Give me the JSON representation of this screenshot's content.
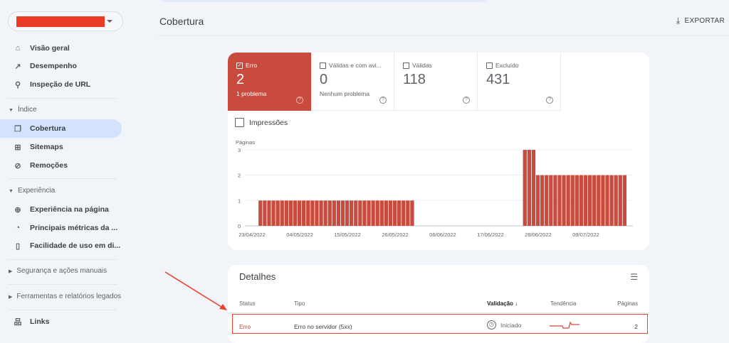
{
  "sidebar": {
    "items_top": [
      {
        "label": "Visão geral",
        "icon": "home-icon"
      },
      {
        "label": "Desempenho",
        "icon": "trending-up-icon"
      },
      {
        "label": "Inspeção de URL",
        "icon": "search-icon"
      }
    ],
    "section_index": "Índice",
    "items_index": [
      {
        "label": "Cobertura",
        "icon": "file-copy-icon"
      },
      {
        "label": "Sitemaps",
        "icon": "sitemap-icon"
      },
      {
        "label": "Remoções",
        "icon": "eye-off-icon"
      }
    ],
    "section_experience": "Experiência",
    "items_experience": [
      {
        "label": "Experiência na página",
        "icon": "plus-circle-icon"
      },
      {
        "label": "Principais métricas da ...",
        "icon": "speedometer-icon"
      },
      {
        "label": "Facilidade de uso em di...",
        "icon": "phone-icon"
      }
    ],
    "section_security": "Segurança e ações manuais",
    "section_tools": "Ferramentas e relatórios legados",
    "items_bottom": [
      {
        "label": "Links",
        "icon": "network-icon"
      }
    ]
  },
  "header": {
    "title": "Cobertura",
    "export_label": "EXPORTAR"
  },
  "tabs": [
    {
      "label": "Erro",
      "value": "2",
      "sub": "1 problema",
      "checked": true
    },
    {
      "label": "Válidas e com avi...",
      "value": "0",
      "sub": "Nenhum problema",
      "checked": false
    },
    {
      "label": "Válidas",
      "value": "118",
      "sub": "",
      "checked": false
    },
    {
      "label": "Excluído",
      "value": "431",
      "sub": "",
      "checked": false
    }
  ],
  "impressions_label": "Impressões",
  "colors": {
    "error": "#c94b3d",
    "accent_active": "#d3e3fd",
    "annotation": "#e8412c"
  },
  "chart_data": {
    "type": "bar",
    "ylabel": "Páginas",
    "ylim": [
      0,
      3
    ],
    "yticks": [
      "0",
      "1",
      "2",
      "3"
    ],
    "start_date": "23/04/2022",
    "xtick_labels": [
      "23/04/2022",
      "04/05/2022",
      "15/05/2022",
      "26/05/2022",
      "06/06/2022",
      "17/06/2022",
      "28/06/2022",
      "09/07/2022"
    ],
    "values": [
      0,
      0,
      1,
      1,
      1,
      1,
      1,
      1,
      1,
      1,
      1,
      1,
      1,
      1,
      1,
      1,
      1,
      1,
      1,
      1,
      1,
      1,
      1,
      1,
      1,
      1,
      1,
      1,
      1,
      1,
      1,
      1,
      1,
      1,
      1,
      1,
      1,
      1,
      0,
      0,
      0,
      0,
      0,
      0,
      0,
      0,
      0,
      0,
      0,
      0,
      0,
      0,
      0,
      0,
      0,
      0,
      0,
      0,
      0,
      0,
      0,
      0,
      0,
      3,
      3,
      3,
      2,
      2,
      2,
      2,
      2,
      2,
      2,
      2,
      2,
      2,
      2,
      2,
      2,
      2,
      2,
      2,
      2,
      2,
      2,
      2,
      2
    ]
  },
  "details": {
    "title": "Detalhes",
    "columns": [
      "Status",
      "Tipo",
      "Validação",
      "Tendência",
      "Páginas"
    ],
    "rows": [
      {
        "status": "Erro",
        "type": "Erro no servidor (5xx)",
        "validation": "Iniciado",
        "pages": "2"
      }
    ]
  }
}
